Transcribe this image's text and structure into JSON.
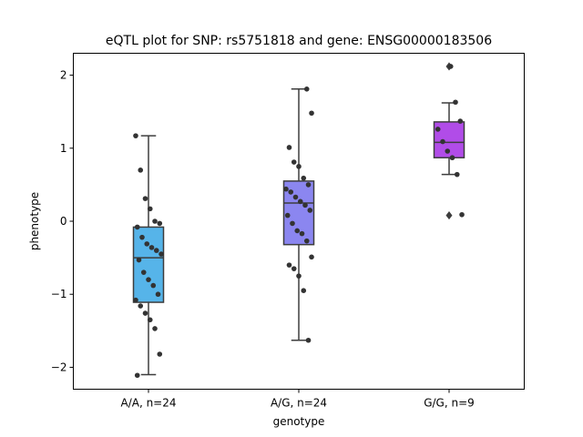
{
  "chart_data": {
    "type": "box",
    "title": "eQTL plot for SNP: rs5751818 and gene: ENSG00000183506",
    "xlabel": "genotype",
    "ylabel": "phenotype",
    "ylim": [
      -2.3,
      2.3
    ],
    "yticks": [
      -2,
      -1,
      0,
      1,
      2
    ],
    "yticklabels": [
      "−2",
      "−1",
      "0",
      "1",
      "2"
    ],
    "categories": [
      "A/A, n=24",
      "A/G, n=24",
      "G/G, n=9"
    ],
    "colors": [
      "#56b4e9",
      "#8b86f0",
      "#b14ce8"
    ],
    "boxes": [
      {
        "category": "A/A, n=24",
        "whisker_low": -2.1,
        "q1": -1.11,
        "median": -0.5,
        "q3": -0.08,
        "whisker_high": 1.17,
        "outliers": []
      },
      {
        "category": "A/G, n=24",
        "whisker_low": -1.63,
        "q1": -0.32,
        "median": 0.25,
        "q3": 0.55,
        "whisker_high": 1.81,
        "outliers": []
      },
      {
        "category": "G/G, n=9",
        "whisker_low": 0.64,
        "q1": 0.87,
        "median": 1.08,
        "q3": 1.36,
        "whisker_high": 1.62,
        "outliers": [
          2.12,
          0.08
        ]
      }
    ],
    "points": [
      {
        "category": "A/A, n=24",
        "values": [
          1.17,
          0.7,
          0.31,
          0.17,
          0.0,
          -0.03,
          -0.08,
          -0.22,
          -0.31,
          -0.36,
          -0.4,
          -0.45,
          -0.53,
          -0.7,
          -0.8,
          -0.88,
          -1.0,
          -1.08,
          -1.16,
          -1.26,
          -1.35,
          -1.47,
          -1.82,
          -2.11
        ]
      },
      {
        "category": "A/G, n=24",
        "values": [
          1.81,
          1.48,
          1.01,
          0.81,
          0.75,
          0.59,
          0.5,
          0.44,
          0.4,
          0.33,
          0.27,
          0.22,
          0.15,
          0.08,
          -0.03,
          -0.13,
          -0.17,
          -0.27,
          -0.49,
          -0.6,
          -0.65,
          -0.75,
          -0.95,
          -1.63
        ]
      },
      {
        "category": "G/G, n=9",
        "values": [
          2.12,
          1.63,
          1.37,
          1.26,
          1.09,
          0.96,
          0.87,
          0.64,
          0.09
        ]
      }
    ]
  }
}
